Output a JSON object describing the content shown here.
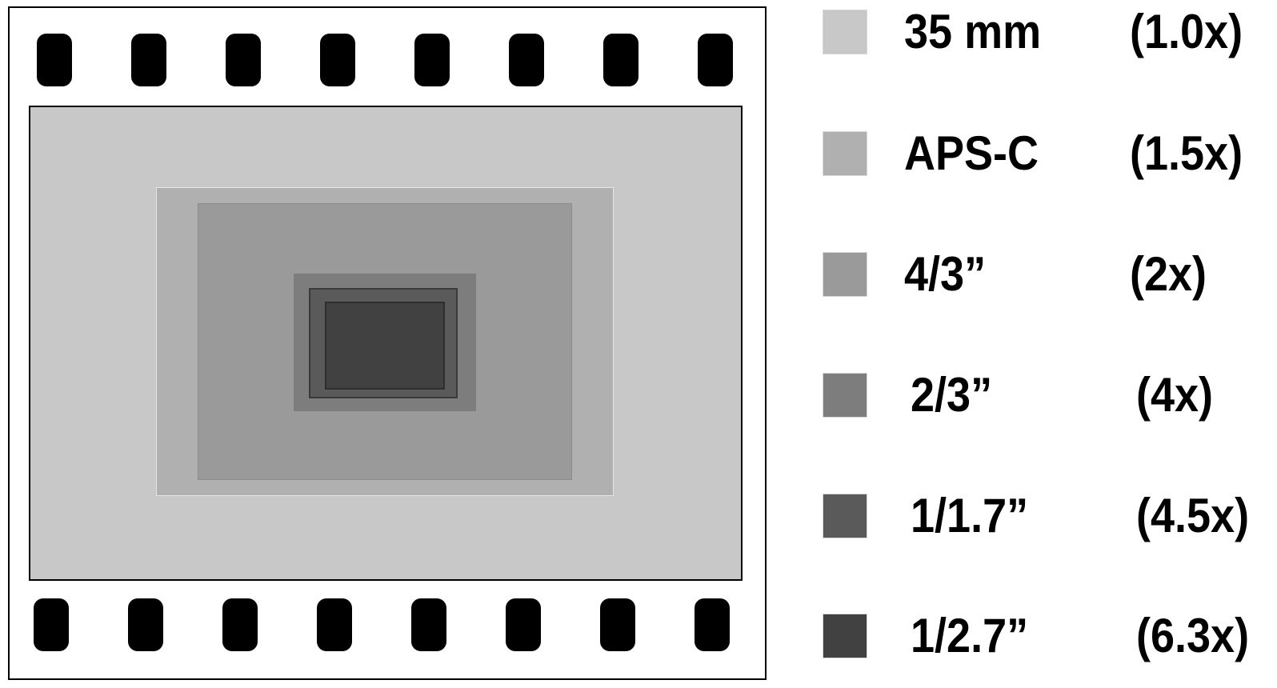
{
  "legend": {
    "items": [
      {
        "name": "35 mm",
        "factor": "(1.0x)",
        "color": "#c8c8c8"
      },
      {
        "name": "APS-C",
        "factor": "(1.5x)",
        "color": "#b0b0b0"
      },
      {
        "name": "4/3”",
        "factor": "(2x)",
        "color": "#9a9a9a"
      },
      {
        "name": "2/3”",
        "factor": "(4x)",
        "color": "#7d7d7d"
      },
      {
        "name": "1/1.7”",
        "factor": "(4.5x)",
        "color": "#5a5a5a"
      },
      {
        "name": "1/2.7”",
        "factor": "(6.3x)",
        "color": "#414141"
      }
    ]
  },
  "colors": {
    "sprocket": "#000000",
    "frame_border": "#000000",
    "background": "#ffffff"
  }
}
